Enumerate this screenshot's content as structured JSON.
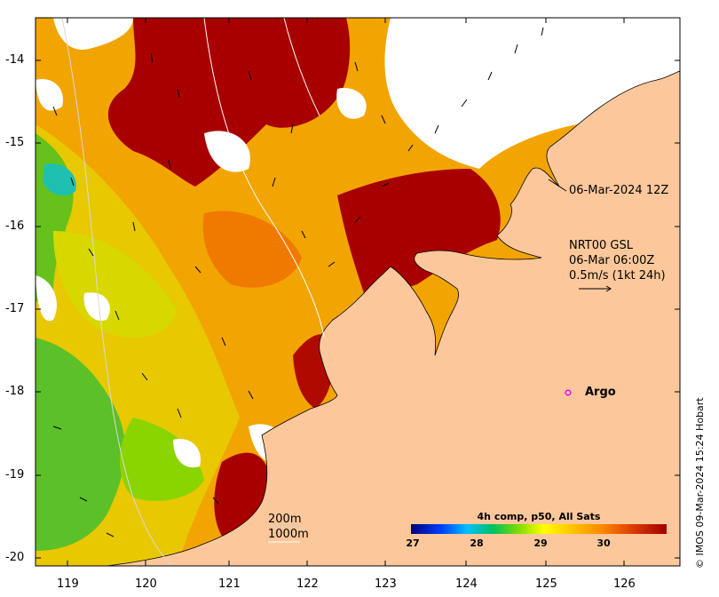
{
  "title_time": "06-Mar-2024 12Z",
  "current_info": {
    "line1": "NRT00 GSL",
    "line2": "06-Mar 06:00Z",
    "line3": "0.5m/s (1kt 24h)"
  },
  "argo_label": "Argo",
  "depth_labels": [
    "200m",
    "1000m"
  ],
  "colorbar": {
    "title": "4h comp, p50, All Sats",
    "ticks": [
      "27",
      "28",
      "29",
      "30"
    ],
    "range": [
      27,
      31
    ],
    "colors": [
      "#00007f",
      "#0050ff",
      "#00c8ff",
      "#00c864",
      "#7fdc00",
      "#ffff00",
      "#ffc800",
      "#ff8c00",
      "#e65000",
      "#a00000"
    ]
  },
  "x_axis": {
    "ticks": [
      "119",
      "120",
      "121",
      "122",
      "123",
      "124",
      "125",
      "126"
    ]
  },
  "y_axis": {
    "ticks": [
      "-14",
      "-15",
      "-16",
      "-17",
      "-18",
      "-19",
      "-20"
    ]
  },
  "credit": "© IMOS 09-Mar-2024 15:24 Hobart",
  "colors": {
    "land": "#fcc79a",
    "frame": "#000000",
    "argo": "#ff00ff"
  }
}
